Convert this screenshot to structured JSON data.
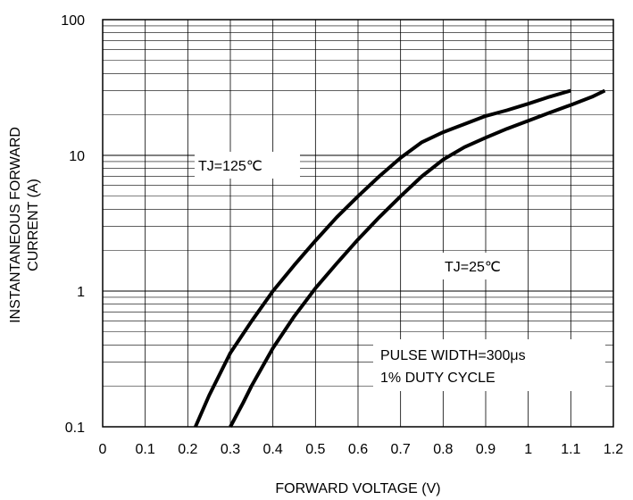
{
  "chart_data": {
    "type": "line",
    "title": "",
    "xlabel": "FORWARD VOLTAGE (V)",
    "ylabel_line1": "INSTANTANEOUS FORWARD",
    "ylabel_line2": "CURRENT (A)",
    "xlim": [
      0,
      1.2
    ],
    "ylim": [
      0.1,
      100
    ],
    "yscale": "log",
    "grid": true,
    "x_ticks": [
      "0",
      "0.1",
      "0.2",
      "0.3",
      "0.4",
      "0.5",
      "0.6",
      "0.7",
      "0.8",
      "0.9",
      "1",
      "1.1",
      "1.2"
    ],
    "y_ticks": [
      "0.1",
      "1",
      "10",
      "100"
    ],
    "series": [
      {
        "name": "TJ=125℃",
        "x": [
          0.218,
          0.25,
          0.3,
          0.35,
          0.4,
          0.45,
          0.5,
          0.55,
          0.6,
          0.65,
          0.7,
          0.75,
          0.8,
          0.85,
          0.9,
          0.95,
          1.0,
          1.05,
          1.1
        ],
        "y": [
          0.1,
          0.17,
          0.35,
          0.6,
          1.0,
          1.55,
          2.35,
          3.5,
          5.0,
          7.0,
          9.6,
          12.5,
          14.8,
          17.0,
          19.5,
          21.5,
          24.0,
          27.0,
          30.0
        ]
      },
      {
        "name": "TJ=25℃",
        "x": [
          0.3,
          0.33,
          0.35,
          0.4,
          0.45,
          0.5,
          0.55,
          0.6,
          0.65,
          0.7,
          0.75,
          0.8,
          0.85,
          0.9,
          0.95,
          1.0,
          1.05,
          1.1,
          1.15,
          1.18
        ],
        "y": [
          0.1,
          0.15,
          0.2,
          0.38,
          0.65,
          1.05,
          1.6,
          2.4,
          3.5,
          5.0,
          7.0,
          9.3,
          11.5,
          13.5,
          15.7,
          18.0,
          20.6,
          23.5,
          27.0,
          30.0
        ]
      }
    ],
    "annotations": {
      "tj125": "TJ=125℃",
      "tj25": "TJ=25℃",
      "pulse_line1": "PULSE WIDTH=300μs",
      "pulse_line2": "1% DUTY CYCLE"
    }
  }
}
